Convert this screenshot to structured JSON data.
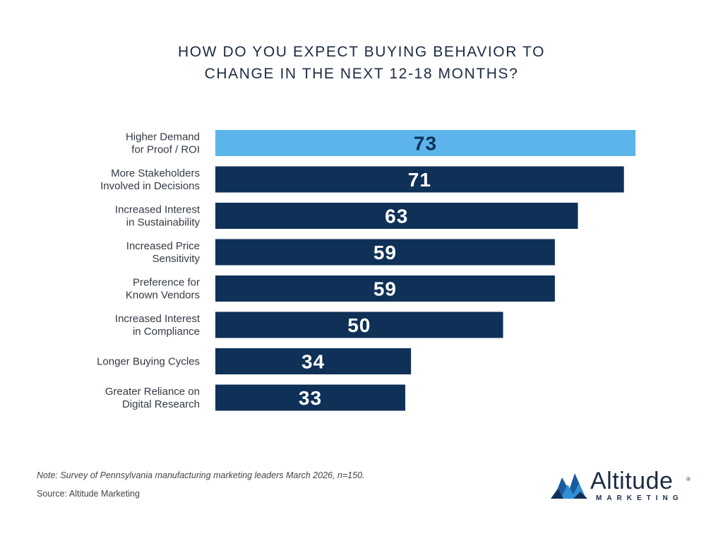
{
  "title_lines": [
    "HOW DO YOU EXPECT BUYING BEHAVIOR TO",
    "CHANGE IN THE NEXT 12-18 MONTHS?"
  ],
  "colors": {
    "highlight": "#5cb4ea",
    "bar": "#0f3157",
    "label": "#333a44",
    "value_text": "#ffffff",
    "highlight_text": "#0f3157"
  },
  "chart_data": {
    "type": "bar",
    "orientation": "horizontal",
    "title": "HOW DO YOU EXPECT BUYING BEHAVIOR TO CHANGE IN THE NEXT 12-18 MONTHS?",
    "xlim": [
      0,
      73
    ],
    "grid": false,
    "categories": [
      [
        "Higher Demand",
        "for Proof / ROI"
      ],
      [
        "More Stakeholders",
        "Involved in Decisions"
      ],
      [
        "Increased Interest",
        "in Sustainability"
      ],
      [
        "Increased Price",
        "Sensitivity"
      ],
      [
        "Preference for",
        "Known Vendors"
      ],
      [
        "Increased Interest",
        "in Compliance"
      ],
      [
        "Longer Buying Cycles"
      ],
      [
        "Greater Reliance on",
        "Digital Research"
      ]
    ],
    "values": [
      73,
      71,
      63,
      59,
      59,
      50,
      34,
      33
    ],
    "highlight_index": 0
  },
  "footer": {
    "note": "Note: Survey of Pennsylvania manufacturing marketing leaders March 2026, n=150.",
    "source": "Source: Altitude Marketing"
  },
  "logo": {
    "word": "Altitude",
    "sub": "MARKETING",
    "reg": "®"
  }
}
